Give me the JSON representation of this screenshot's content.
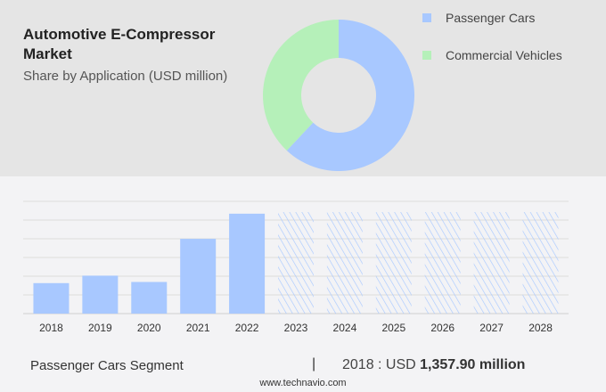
{
  "title": "Automotive E-Compressor Market",
  "subtitle": "Share by Application (USD million)",
  "colors": {
    "passenger": "#a8c8ff",
    "commercial": "#b5f0b9",
    "forecast_hatch": "#a8c8ff"
  },
  "chart_data": [
    {
      "type": "pie",
      "subtype": "donut",
      "labels": [
        "Passenger Cars",
        "Commercial Vehicles"
      ],
      "values": [
        62,
        38
      ],
      "legend_placement": "right"
    },
    {
      "type": "bar",
      "categories": [
        "2018",
        "2019",
        "2020",
        "2021",
        "2022",
        "2023",
        "2024",
        "2025",
        "2026",
        "2027",
        "2028"
      ],
      "values": [
        1357.9,
        1690,
        1410,
        3330,
        4450,
        null,
        null,
        null,
        null,
        null,
        null
      ],
      "forecast": [
        false,
        false,
        false,
        false,
        false,
        true,
        true,
        true,
        true,
        true,
        true
      ],
      "ylim": [
        0,
        5000
      ],
      "grid": true,
      "xlabel": "",
      "ylabel": ""
    }
  ],
  "footer": {
    "segment": "Passenger Cars Segment",
    "separator": "|",
    "year_label": "2018 : USD ",
    "value": "1,357.90 million",
    "site": "www.technavio.com"
  }
}
